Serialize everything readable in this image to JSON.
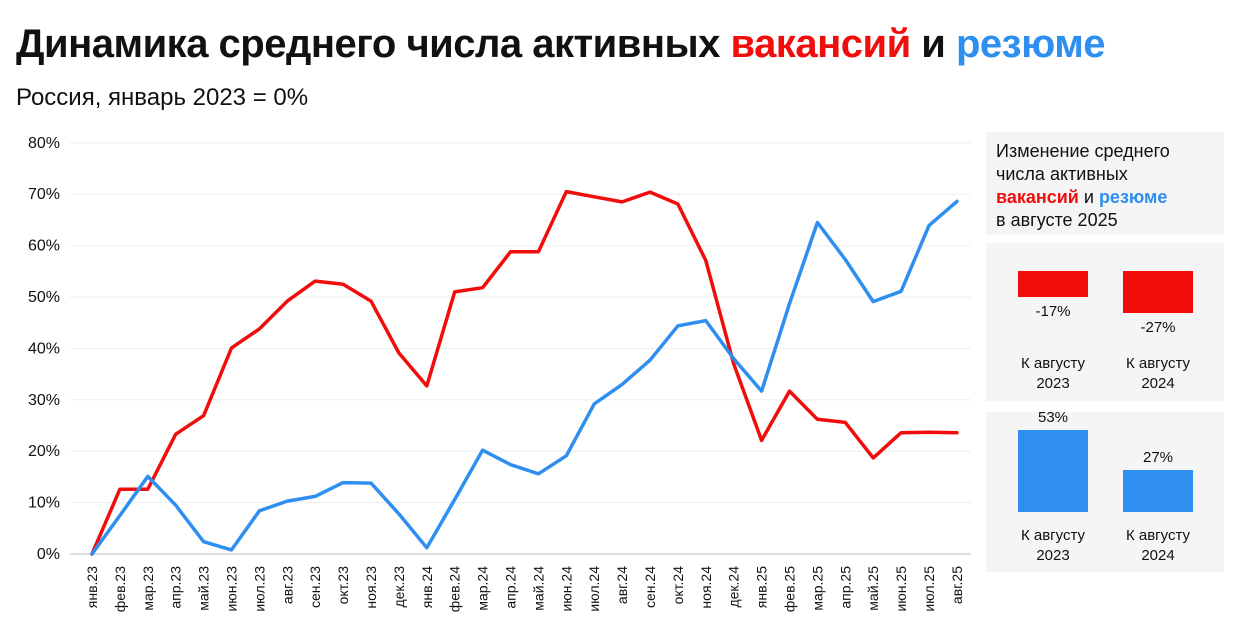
{
  "header": {
    "title_prefix": "Динамика среднего числа активных ",
    "title_red": "вакансий",
    "title_mid": " и ",
    "title_blue": "резюме",
    "subtitle": "Россия, январь 2023 = 0%"
  },
  "side_panel": {
    "note_line1": "Изменение среднего",
    "note_line2": "числа активных",
    "note_red": "вакансий",
    "note_mid": " и ",
    "note_blue": "резюме",
    "note_line4": "в августе 2025",
    "vacancies": {
      "color": "#f20d0d",
      "bars": [
        {
          "label": "-17%",
          "value": -17,
          "category_line1": "К августу",
          "category_line2": "2023"
        },
        {
          "label": "-27%",
          "value": -27,
          "category_line1": "К августу",
          "category_line2": "2024"
        }
      ]
    },
    "resumes": {
      "color": "#2e8ff0",
      "bars": [
        {
          "label": "53%",
          "value": 53,
          "category_line1": "К августу",
          "category_line2": "2023"
        },
        {
          "label": "27%",
          "value": 27,
          "category_line1": "К августу",
          "category_line2": "2024"
        }
      ]
    }
  },
  "chart_data": {
    "type": "line",
    "title": "Динамика среднего числа активных вакансий и резюме",
    "subtitle": "Россия, январь 2023 = 0%",
    "categories": [
      "янв.23",
      "фев.23",
      "мар.23",
      "апр.23",
      "май.23",
      "июн.23",
      "июл.23",
      "авг.23",
      "сен.23",
      "окт.23",
      "ноя.23",
      "дек.23",
      "янв.24",
      "фев.24",
      "мар.24",
      "апр.24",
      "май.24",
      "июн.24",
      "июл.24",
      "авг.24",
      "сен.24",
      "окт.24",
      "ноя.24",
      "дек.24",
      "янв.25",
      "фев.25",
      "мар.25",
      "апр.25",
      "май.25",
      "июн.25",
      "июл.25",
      "авг.25"
    ],
    "yticks": [
      "0%",
      "10%",
      "20%",
      "30%",
      "40%",
      "50%",
      "60%",
      "70%",
      "80%"
    ],
    "ylim": [
      0,
      80
    ],
    "grid": true,
    "series": [
      {
        "name": "вакансий",
        "color": "#f20d0d",
        "values": [
          0,
          12.6,
          12.6,
          23.3,
          26.9,
          40.1,
          43.8,
          49.2,
          53.1,
          52.5,
          49.2,
          39.1,
          32.7,
          51.0,
          51.8,
          58.8,
          58.8,
          70.5,
          69.5,
          68.5,
          70.4,
          68.1,
          57.1,
          37.0,
          22.1,
          31.7,
          26.2,
          25.6,
          18.7,
          23.6,
          23.7,
          23.6
        ]
      },
      {
        "name": "резюме",
        "color": "#2e8ff0",
        "values": [
          0,
          7.5,
          15.1,
          9.5,
          2.4,
          0.8,
          8.4,
          10.3,
          11.2,
          13.9,
          13.8,
          7.8,
          1.2,
          10.6,
          20.2,
          17.4,
          15.6,
          19.1,
          29.2,
          33.0,
          37.7,
          44.4,
          45.4,
          38.0,
          31.7,
          48.7,
          64.5,
          57.3,
          49.1,
          51.1,
          63.9,
          68.6
        ]
      }
    ]
  }
}
